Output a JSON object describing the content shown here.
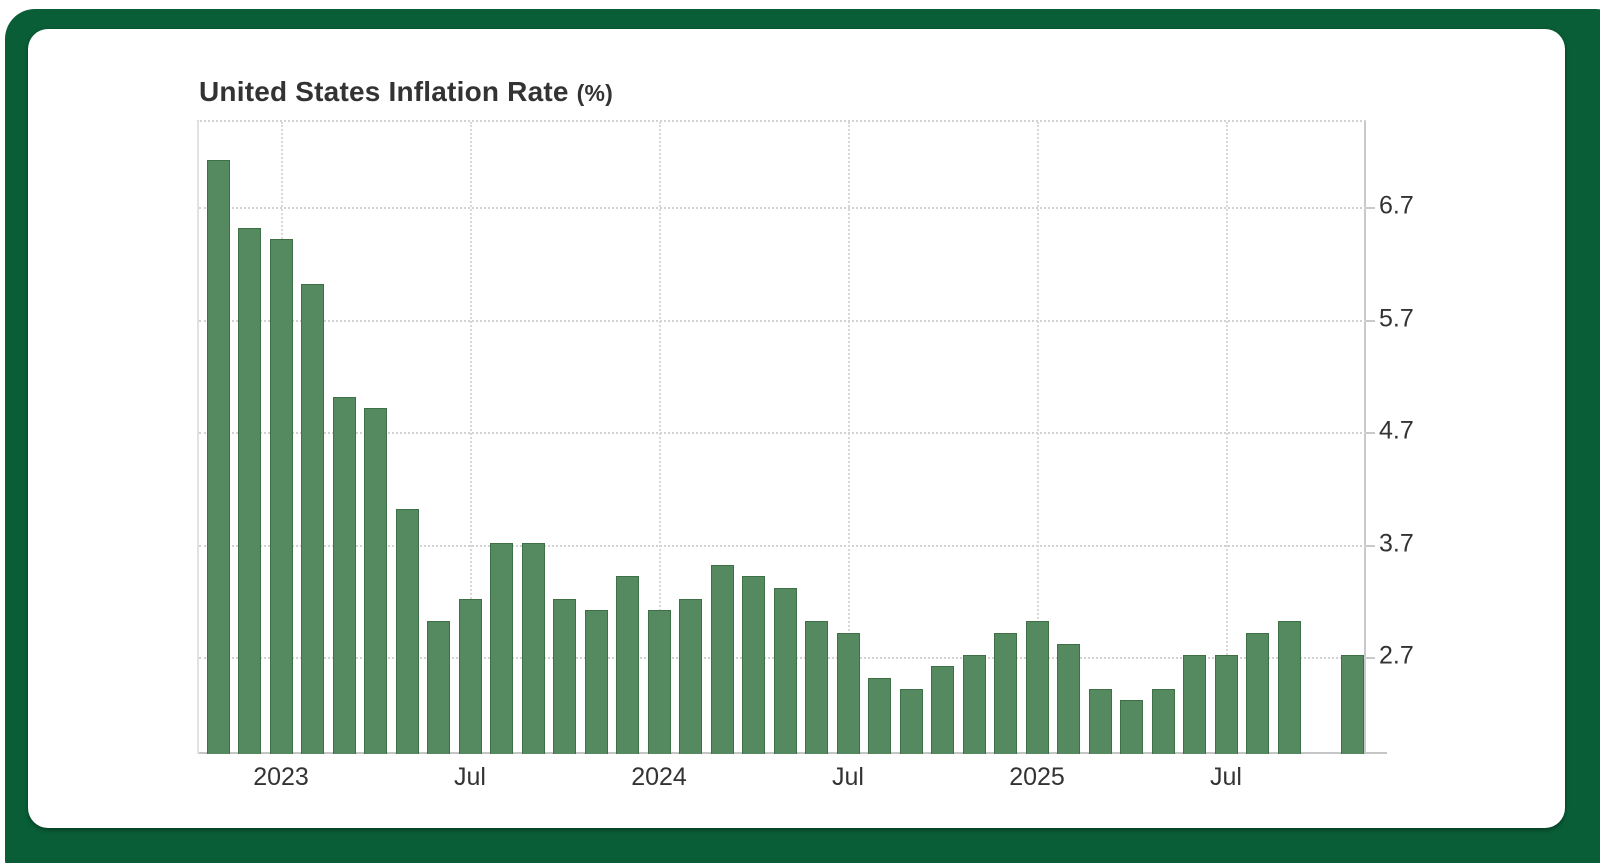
{
  "title": {
    "main": "United States Inflation Rate",
    "unit": "(%)"
  },
  "colors": {
    "frame_green": "#095e37",
    "card_bg": "#ffffff",
    "bar_fill": "#55895f",
    "bar_border": "#3e7048",
    "grid_dot": "#d2d2d2",
    "axis_line": "#c9c9c9",
    "text": "#333333"
  },
  "chart_data": {
    "type": "bar",
    "title": "United States Inflation Rate (%)",
    "ylabel": "Inflation Rate (%)",
    "xlabel": "",
    "grid": "dotted",
    "legend_position": "none",
    "y_axis_side": "right",
    "y_ticks": [
      6.7,
      5.7,
      4.7,
      3.7,
      2.7
    ],
    "ylim": [
      1.82,
      7.46
    ],
    "x_months": [
      "2022-11",
      "2022-12",
      "2023-01",
      "2023-02",
      "2023-03",
      "2023-04",
      "2023-05",
      "2023-06",
      "2023-07",
      "2023-08",
      "2023-09",
      "2023-10",
      "2023-11",
      "2023-12",
      "2024-01",
      "2024-02",
      "2024-03",
      "2024-04",
      "2024-05",
      "2024-06",
      "2024-07",
      "2024-08",
      "2024-09",
      "2024-10",
      "2024-11",
      "2024-12",
      "2025-01",
      "2025-02",
      "2025-03",
      "2025-04",
      "2025-05",
      "2025-06",
      "2025-07",
      "2025-08",
      "2025-09",
      "2025-10",
      "2025-11"
    ],
    "values": [
      7.1,
      6.5,
      6.4,
      6.0,
      5.0,
      4.9,
      4.0,
      3.0,
      3.2,
      3.7,
      3.7,
      3.2,
      3.1,
      3.4,
      3.1,
      3.2,
      3.5,
      3.4,
      3.3,
      3.0,
      2.9,
      2.5,
      2.4,
      2.6,
      2.7,
      2.9,
      3.0,
      2.8,
      2.4,
      2.3,
      2.4,
      2.7,
      2.7,
      2.9,
      3.0,
      null,
      2.7
    ],
    "x_tick_marks": [
      {
        "index": 2,
        "label": "2023"
      },
      {
        "index": 8,
        "label": "Jul"
      },
      {
        "index": 14,
        "label": "2024"
      },
      {
        "index": 20,
        "label": "Jul"
      },
      {
        "index": 26,
        "label": "2025"
      },
      {
        "index": 32,
        "label": "Jul"
      }
    ]
  }
}
